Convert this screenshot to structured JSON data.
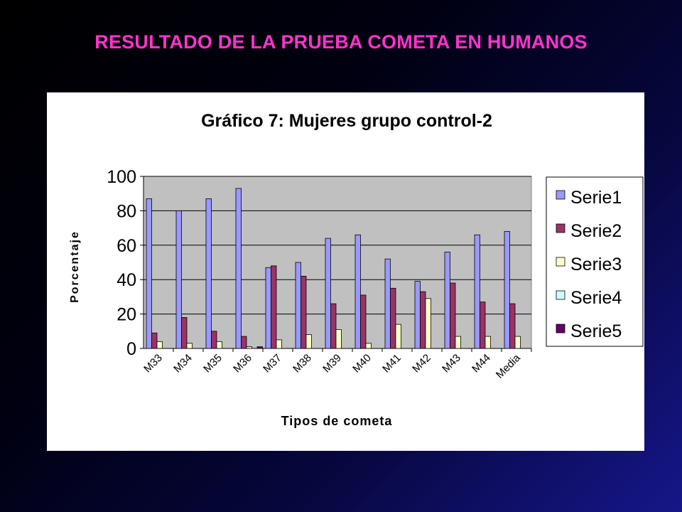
{
  "slide_title": "RESULTADO DE LA PRUEBA COMETA EN HUMANOS",
  "colors": {
    "title": "#ff33cc",
    "plot_area": "#c0c0c0",
    "series": [
      "#9999ff",
      "#993366",
      "#ffffcc",
      "#ccffff",
      "#660066"
    ]
  },
  "chart_data": {
    "type": "bar",
    "title": "Gráfico 7: Mujeres grupo control-2",
    "xlabel": "Tipos de cometa",
    "ylabel": "Porcentaje",
    "ylim": [
      0,
      100
    ],
    "yticks": [
      0,
      20,
      40,
      60,
      80,
      100
    ],
    "grid": true,
    "legend_position": "right",
    "categories": [
      "M33",
      "M34",
      "M35",
      "M36",
      "M37",
      "M38",
      "M39",
      "M40",
      "M41",
      "M42",
      "M43",
      "M44",
      "Media"
    ],
    "series": [
      {
        "name": "Serie1",
        "values": [
          87,
          80,
          87,
          93,
          47,
          50,
          64,
          66,
          52,
          39,
          56,
          66,
          68
        ]
      },
      {
        "name": "Serie2",
        "values": [
          9,
          18,
          10,
          7,
          48,
          42,
          26,
          31,
          35,
          33,
          38,
          27,
          26
        ]
      },
      {
        "name": "Serie3",
        "values": [
          4,
          3,
          4,
          1,
          5,
          8,
          11,
          3,
          14,
          29,
          7,
          7,
          7
        ]
      },
      {
        "name": "Serie4",
        "values": [
          0,
          0,
          0,
          0,
          0,
          0,
          0,
          0,
          0,
          0,
          0,
          0,
          0
        ]
      },
      {
        "name": "Serie5",
        "values": [
          0,
          0,
          0,
          1,
          0,
          0,
          0,
          0,
          0,
          0,
          0,
          0,
          0
        ]
      }
    ]
  }
}
